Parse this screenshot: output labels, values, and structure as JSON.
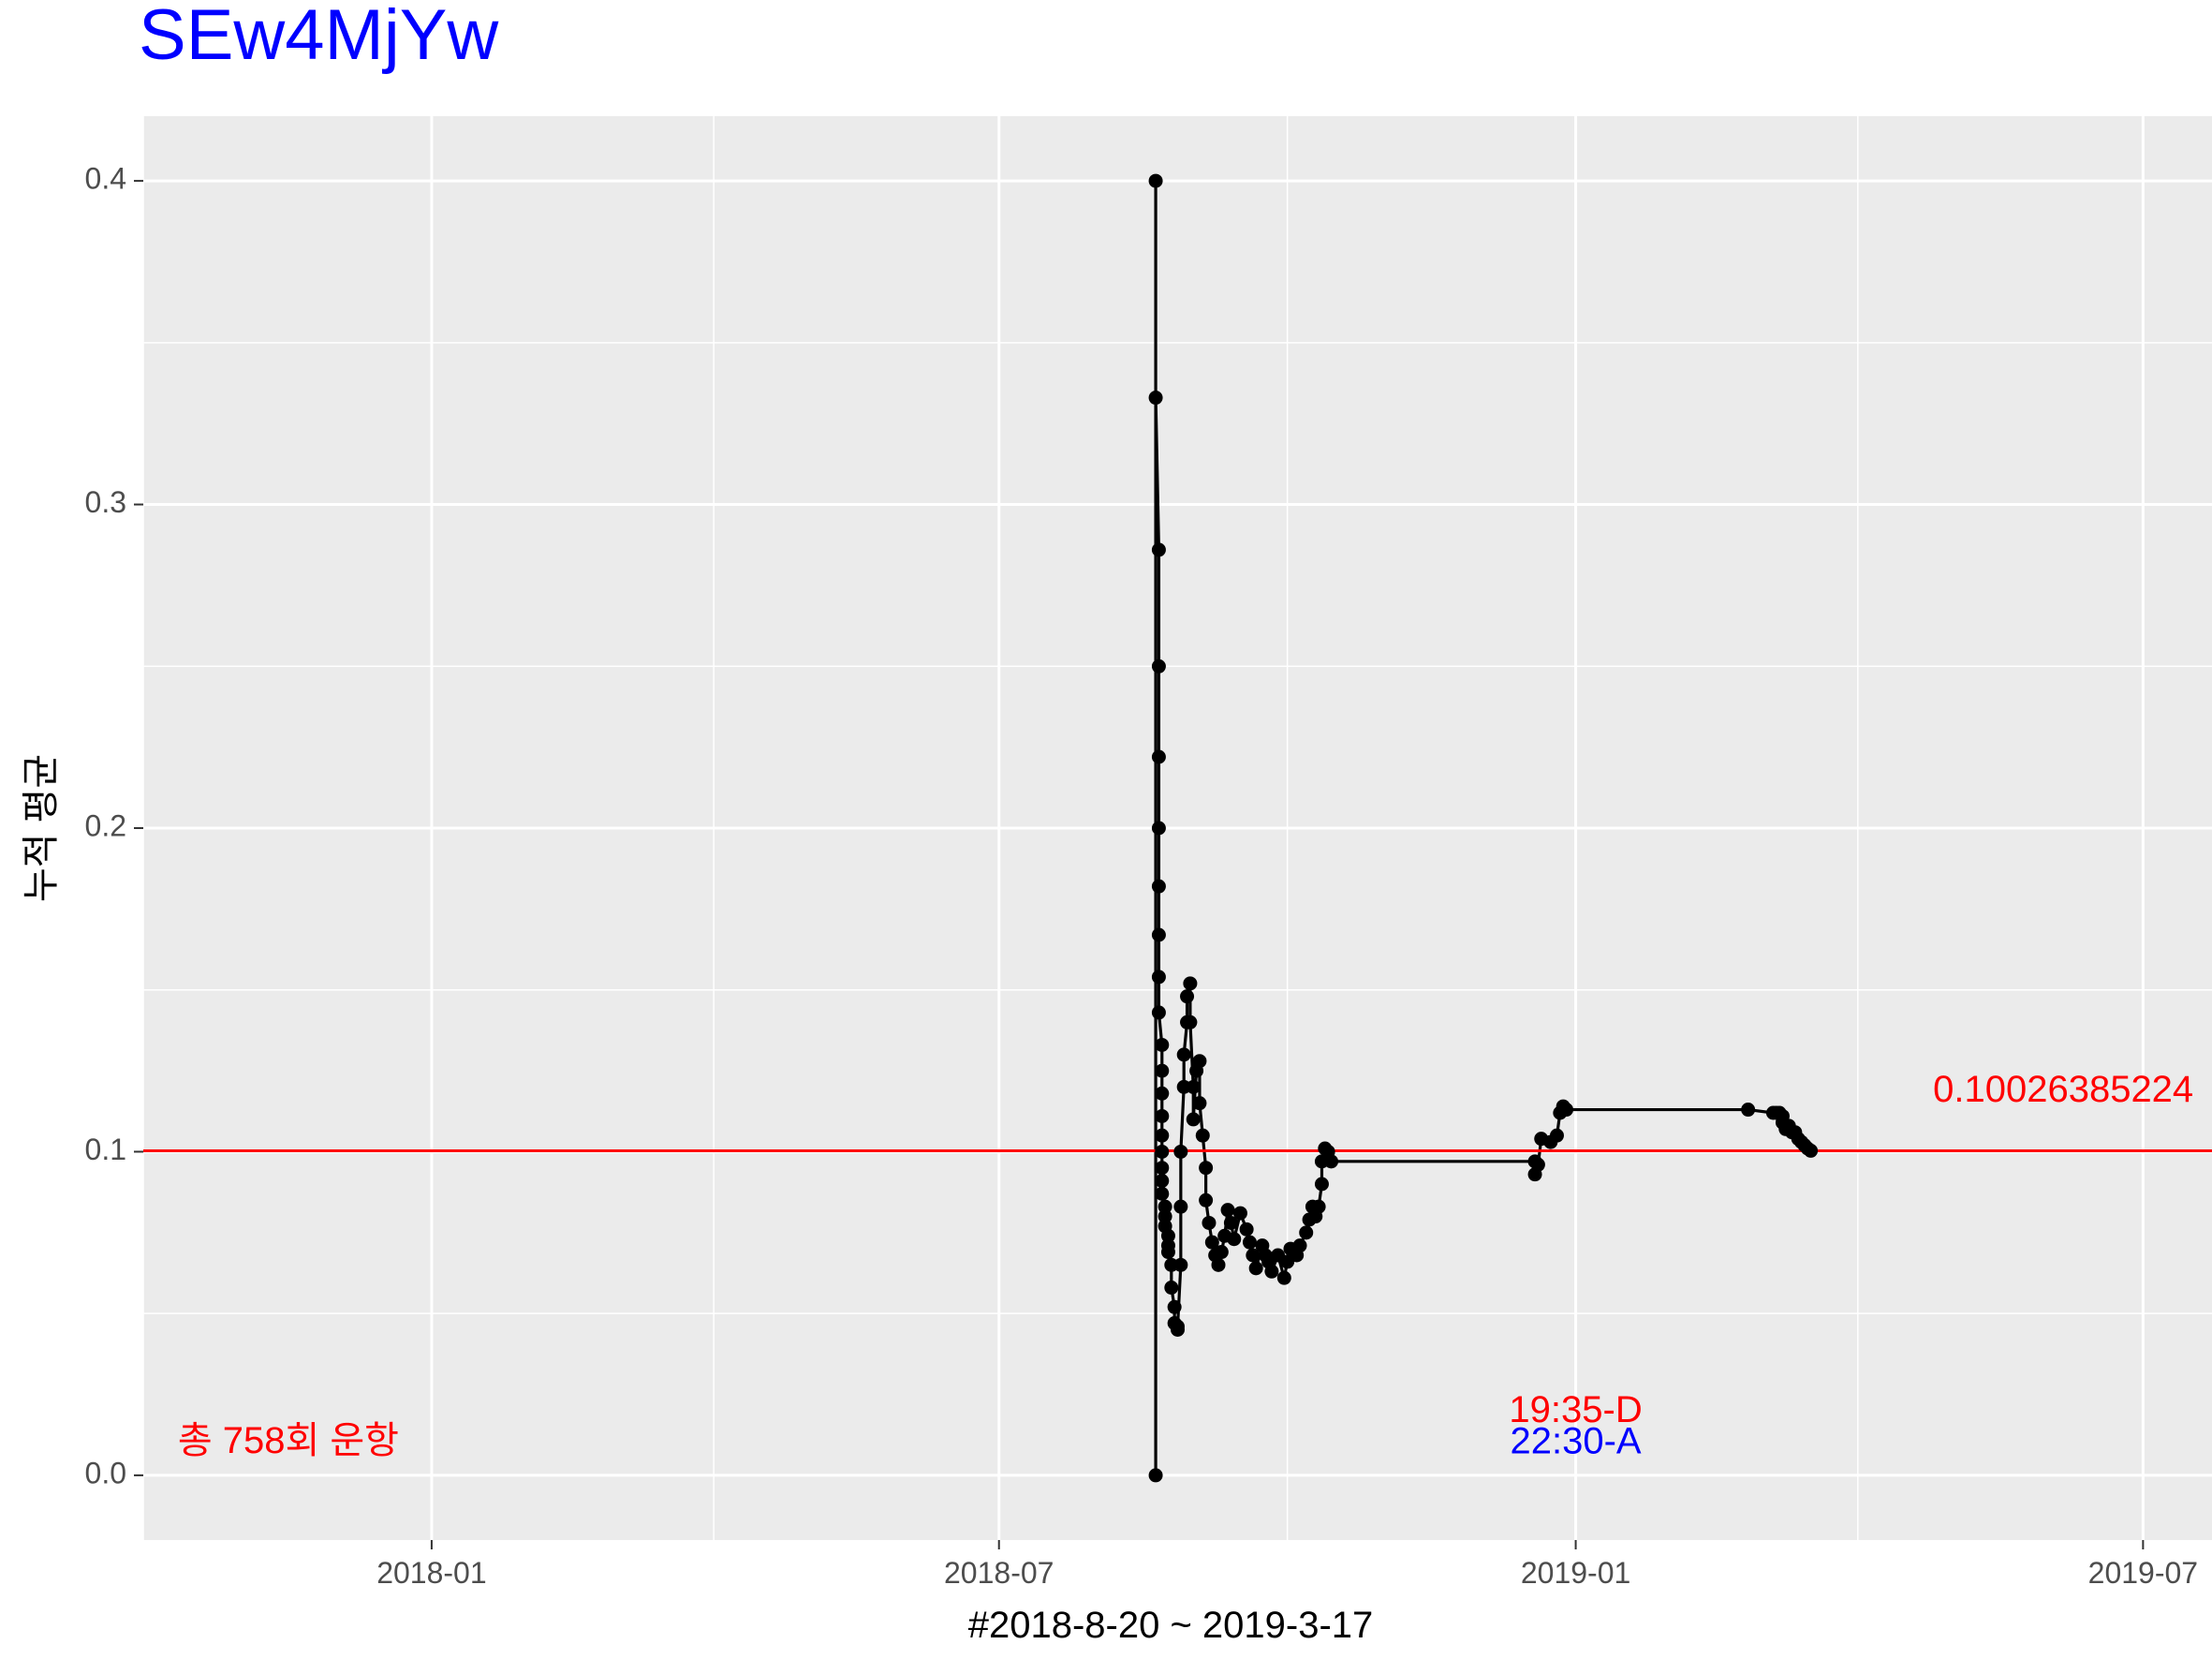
{
  "chart_data": {
    "type": "line",
    "title": "SEw4MjYw",
    "xlabel": "#2018-8-20 ~ 2019-3-17",
    "ylabel": "누적 평균",
    "x_ticks": [
      {
        "date": "2018-01-01",
        "label": "2018-01"
      },
      {
        "date": "2018-07-01",
        "label": "2018-07"
      },
      {
        "date": "2019-01-01",
        "label": "2019-01"
      },
      {
        "date": "2019-07-01",
        "label": "2019-07"
      }
    ],
    "x_minor": [
      "2017-10-01",
      "2018-04-01",
      "2018-10-01",
      "2019-04-01"
    ],
    "xlim": [
      "2017-10-01",
      "2019-07-23"
    ],
    "y_ticks": [
      0.0,
      0.1,
      0.2,
      0.3,
      0.4
    ],
    "y_tick_labels": [
      "0.0",
      "0.1",
      "0.2",
      "0.3",
      "0.4"
    ],
    "ylim": [
      -0.02,
      0.42
    ],
    "grid": true,
    "series": [
      {
        "color": "#000000",
        "points": [
          [
            "2018-08-20",
            0.0
          ],
          [
            "2018-08-20",
            0.4
          ],
          [
            "2018-08-20",
            0.333
          ],
          [
            "2018-08-21",
            0.286
          ],
          [
            "2018-08-21",
            0.25
          ],
          [
            "2018-08-21",
            0.222
          ],
          [
            "2018-08-21",
            0.2
          ],
          [
            "2018-08-21",
            0.182
          ],
          [
            "2018-08-21",
            0.167
          ],
          [
            "2018-08-21",
            0.154
          ],
          [
            "2018-08-21",
            0.143
          ],
          [
            "2018-08-22",
            0.133
          ],
          [
            "2018-08-22",
            0.125
          ],
          [
            "2018-08-22",
            0.118
          ],
          [
            "2018-08-22",
            0.111
          ],
          [
            "2018-08-22",
            0.105
          ],
          [
            "2018-08-22",
            0.1
          ],
          [
            "2018-08-22",
            0.095
          ],
          [
            "2018-08-22",
            0.091
          ],
          [
            "2018-08-22",
            0.087
          ],
          [
            "2018-08-23",
            0.083
          ],
          [
            "2018-08-23",
            0.08
          ],
          [
            "2018-08-23",
            0.077
          ],
          [
            "2018-08-24",
            0.074
          ],
          [
            "2018-08-24",
            0.071
          ],
          [
            "2018-08-24",
            0.069
          ],
          [
            "2018-08-25",
            0.065
          ],
          [
            "2018-08-25",
            0.058
          ],
          [
            "2018-08-26",
            0.052
          ],
          [
            "2018-08-26",
            0.047
          ],
          [
            "2018-08-27",
            0.045
          ],
          [
            "2018-08-27",
            0.046
          ],
          [
            "2018-08-28",
            0.065
          ],
          [
            "2018-08-28",
            0.083
          ],
          [
            "2018-08-28",
            0.1
          ],
          [
            "2018-08-29",
            0.12
          ],
          [
            "2018-08-29",
            0.13
          ],
          [
            "2018-08-30",
            0.14
          ],
          [
            "2018-08-30",
            0.148
          ],
          [
            "2018-08-31",
            0.152
          ],
          [
            "2018-08-31",
            0.14
          ],
          [
            "2018-09-01",
            0.12
          ],
          [
            "2018-09-01",
            0.11
          ],
          [
            "2018-09-02",
            0.125
          ],
          [
            "2018-09-03",
            0.128
          ],
          [
            "2018-09-03",
            0.115
          ],
          [
            "2018-09-04",
            0.105
          ],
          [
            "2018-09-05",
            0.095
          ],
          [
            "2018-09-05",
            0.085
          ],
          [
            "2018-09-06",
            0.078
          ],
          [
            "2018-09-07",
            0.072
          ],
          [
            "2018-09-08",
            0.068
          ],
          [
            "2018-09-09",
            0.065
          ],
          [
            "2018-09-10",
            0.069
          ],
          [
            "2018-09-11",
            0.074
          ],
          [
            "2018-09-12",
            0.082
          ],
          [
            "2018-09-13",
            0.078
          ],
          [
            "2018-09-14",
            0.073
          ],
          [
            "2018-09-16",
            0.081
          ],
          [
            "2018-09-18",
            0.076
          ],
          [
            "2018-09-19",
            0.072
          ],
          [
            "2018-09-20",
            0.068
          ],
          [
            "2018-09-21",
            0.064
          ],
          [
            "2018-09-23",
            0.071
          ],
          [
            "2018-09-24",
            0.068
          ],
          [
            "2018-09-25",
            0.066
          ],
          [
            "2018-09-26",
            0.063
          ],
          [
            "2018-09-28",
            0.068
          ],
          [
            "2018-09-30",
            0.061
          ],
          [
            "2018-10-01",
            0.066
          ],
          [
            "2018-10-02",
            0.07
          ],
          [
            "2018-10-04",
            0.068
          ],
          [
            "2018-10-05",
            0.071
          ],
          [
            "2018-10-07",
            0.075
          ],
          [
            "2018-10-08",
            0.079
          ],
          [
            "2018-10-09",
            0.083
          ],
          [
            "2018-10-10",
            0.08
          ],
          [
            "2018-10-11",
            0.083
          ],
          [
            "2018-10-12",
            0.09
          ],
          [
            "2018-10-12",
            0.097
          ],
          [
            "2018-10-13",
            0.101
          ],
          [
            "2018-10-14",
            0.1
          ],
          [
            "2018-10-15",
            0.097
          ],
          [
            "2018-12-19",
            0.097
          ],
          [
            "2018-12-19",
            0.093
          ],
          [
            "2018-12-20",
            0.096
          ],
          [
            "2018-12-21",
            0.104
          ],
          [
            "2018-12-24",
            0.103
          ],
          [
            "2018-12-26",
            0.105
          ],
          [
            "2018-12-27",
            0.112
          ],
          [
            "2018-12-28",
            0.114
          ],
          [
            "2018-12-29",
            0.113
          ],
          [
            "2019-02-25",
            0.113
          ],
          [
            "2019-03-05",
            0.112
          ],
          [
            "2019-03-06",
            0.112
          ],
          [
            "2019-03-07",
            0.112
          ],
          [
            "2019-03-08",
            0.111
          ],
          [
            "2019-03-08",
            0.109
          ],
          [
            "2019-03-09",
            0.107
          ],
          [
            "2019-03-10",
            0.108
          ],
          [
            "2019-03-11",
            0.106
          ],
          [
            "2019-03-12",
            0.106
          ],
          [
            "2019-03-13",
            0.104
          ],
          [
            "2019-03-14",
            0.103
          ],
          [
            "2019-03-15",
            0.102
          ],
          [
            "2019-03-16",
            0.101
          ],
          [
            "2019-03-17",
            0.1003
          ]
        ]
      }
    ],
    "hline": {
      "y": 0.10026385224,
      "color": "#ff0000"
    },
    "annotations": [
      {
        "text": "0.10026385224",
        "x": "2019-04-25",
        "y": 0.1185,
        "color": "#ff0000"
      },
      {
        "text": "총 758회 운항",
        "x": "2017-10-12",
        "y": 0.01,
        "color": "#ff0000"
      },
      {
        "text": "19:35-D",
        "x": "2019-01-01",
        "y": 0.0195,
        "color": "#ff0000"
      },
      {
        "text": "22:30-A",
        "x": "2019-01-01",
        "y": 0.0098,
        "color": "#0000ff"
      }
    ]
  }
}
